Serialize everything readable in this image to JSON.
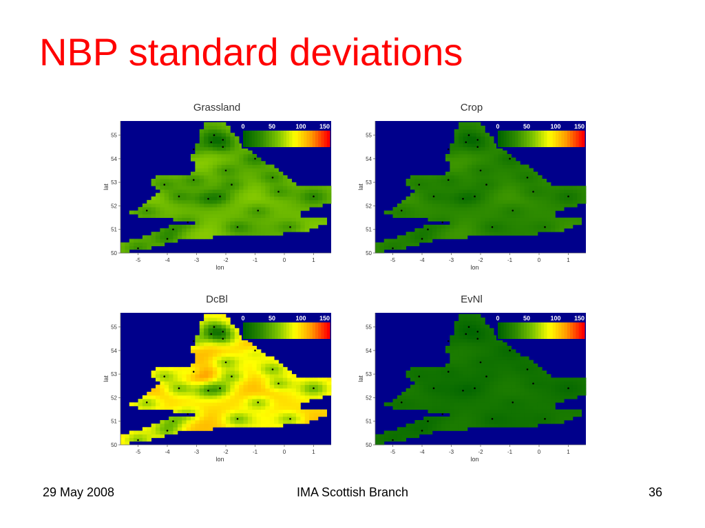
{
  "slide": {
    "title": "NBP standard deviations",
    "footer_left": "29 May 2008",
    "footer_center": "IMA Scottish Branch",
    "footer_right": "36"
  },
  "colors": {
    "title": "#ff0000",
    "ocean": "#00008b",
    "colormap": [
      "#006400",
      "#2e8b00",
      "#7cc400",
      "#ffff00",
      "#ff9900",
      "#ff0000"
    ]
  },
  "chart_data": [
    {
      "type": "heatmap",
      "title": "Grassland",
      "xlabel": "lon",
      "ylabel": "lat",
      "xlim": [
        -5.6,
        1.6
      ],
      "ylim": [
        50,
        55.6
      ],
      "xticks": [
        -5,
        -4,
        -3,
        -2,
        -1,
        0,
        1
      ],
      "yticks": [
        50,
        51,
        52,
        53,
        54,
        55
      ],
      "legend": {
        "placement": "top-right",
        "ticks": [
          0,
          50,
          100,
          150
        ],
        "range": [
          0,
          150
        ]
      },
      "base_value": 55,
      "variation": 8,
      "stations": [
        [
          -4.7,
          51.8
        ],
        [
          -4.1,
          52.9
        ],
        [
          -3.6,
          52.4
        ],
        [
          -3.1,
          53.1
        ],
        [
          -2.6,
          52.3
        ],
        [
          -2.2,
          52.4
        ],
        [
          -2.0,
          53.5
        ],
        [
          -1.6,
          51.1
        ],
        [
          -0.9,
          51.8
        ],
        [
          -0.4,
          53.2
        ],
        [
          -0.2,
          52.6
        ],
        [
          0.2,
          51.1
        ],
        [
          1.0,
          52.4
        ],
        [
          -2.5,
          54.7
        ],
        [
          -2.1,
          54.5
        ],
        [
          -3.1,
          54.4
        ],
        [
          -1.0,
          54.0
        ],
        [
          -3.8,
          51.0
        ],
        [
          -3.3,
          51.3
        ],
        [
          -4.0,
          50.6
        ],
        [
          -5.0,
          50.2
        ],
        [
          -2.4,
          55.0
        ],
        [
          -2.1,
          54.8
        ],
        [
          -1.8,
          52.9
        ]
      ],
      "hotspots": []
    },
    {
      "type": "heatmap",
      "title": "Crop",
      "xlabel": "lon",
      "ylabel": "lat",
      "xlim": [
        -5.6,
        1.6
      ],
      "ylim": [
        50,
        55.6
      ],
      "xticks": [
        -5,
        -4,
        -3,
        -2,
        -1,
        0,
        1
      ],
      "yticks": [
        50,
        51,
        52,
        53,
        54,
        55
      ],
      "legend": {
        "placement": "top-right",
        "ticks": [
          0,
          50,
          100,
          150
        ],
        "range": [
          0,
          150
        ]
      },
      "base_value": 30,
      "variation": 6,
      "stations": [
        [
          -4.7,
          51.8
        ],
        [
          -4.1,
          52.9
        ],
        [
          -3.6,
          52.4
        ],
        [
          -3.1,
          53.1
        ],
        [
          -2.6,
          52.3
        ],
        [
          -2.2,
          52.4
        ],
        [
          -2.0,
          53.5
        ],
        [
          -1.6,
          51.1
        ],
        [
          -0.9,
          51.8
        ],
        [
          -0.4,
          53.2
        ],
        [
          -0.2,
          52.6
        ],
        [
          0.2,
          51.1
        ],
        [
          1.0,
          52.4
        ],
        [
          -2.5,
          54.7
        ],
        [
          -2.1,
          54.5
        ],
        [
          -3.1,
          54.4
        ],
        [
          -1.0,
          54.0
        ],
        [
          -3.8,
          51.0
        ],
        [
          -3.3,
          51.3
        ],
        [
          -4.0,
          50.6
        ],
        [
          -5.0,
          50.2
        ],
        [
          -2.4,
          55.0
        ],
        [
          -2.1,
          54.8
        ],
        [
          -1.8,
          52.9
        ]
      ],
      "hotspots": []
    },
    {
      "type": "heatmap",
      "title": "DcBl",
      "xlabel": "lon",
      "ylabel": "lat",
      "xlim": [
        -5.6,
        1.6
      ],
      "ylim": [
        50,
        55.6
      ],
      "xticks": [
        -5,
        -4,
        -3,
        -2,
        -1,
        0,
        1
      ],
      "yticks": [
        50,
        51,
        52,
        53,
        54,
        55
      ],
      "legend": {
        "placement": "top-right",
        "ticks": [
          0,
          50,
          100,
          150
        ],
        "range": [
          0,
          150
        ]
      },
      "base_value": 100,
      "variation": 10,
      "stations": [
        [
          -4.7,
          51.8
        ],
        [
          -4.1,
          52.9
        ],
        [
          -3.6,
          52.4
        ],
        [
          -3.1,
          53.1
        ],
        [
          -2.6,
          52.3
        ],
        [
          -2.2,
          52.4
        ],
        [
          -2.0,
          53.5
        ],
        [
          -1.6,
          51.1
        ],
        [
          -0.9,
          51.8
        ],
        [
          -0.4,
          53.2
        ],
        [
          -0.2,
          52.6
        ],
        [
          0.2,
          51.1
        ],
        [
          1.0,
          52.4
        ],
        [
          -2.5,
          54.7
        ],
        [
          -2.1,
          54.5
        ],
        [
          -3.1,
          54.4
        ],
        [
          -1.0,
          54.0
        ],
        [
          -3.8,
          51.0
        ],
        [
          -3.3,
          51.3
        ],
        [
          -4.0,
          50.6
        ],
        [
          -5.0,
          50.2
        ],
        [
          -2.4,
          55.0
        ],
        [
          -2.1,
          54.8
        ],
        [
          -1.8,
          52.9
        ]
      ],
      "hotspots": [
        [
          -2.9,
          53.0,
          40
        ],
        [
          -1.0,
          54.1,
          35
        ]
      ]
    },
    {
      "type": "heatmap",
      "title": "EvNl",
      "xlabel": "lon",
      "ylabel": "lat",
      "xlim": [
        -5.6,
        1.6
      ],
      "ylim": [
        50,
        55.6
      ],
      "xticks": [
        -5,
        -4,
        -3,
        -2,
        -1,
        0,
        1
      ],
      "yticks": [
        50,
        51,
        52,
        53,
        54,
        55
      ],
      "legend": {
        "placement": "top-right",
        "ticks": [
          0,
          50,
          100,
          150
        ],
        "range": [
          0,
          150
        ]
      },
      "base_value": 14,
      "variation": 4,
      "stations": [
        [
          -4.7,
          51.8
        ],
        [
          -4.1,
          52.9
        ],
        [
          -3.6,
          52.4
        ],
        [
          -3.1,
          53.1
        ],
        [
          -2.6,
          52.3
        ],
        [
          -2.2,
          52.4
        ],
        [
          -2.0,
          53.5
        ],
        [
          -1.6,
          51.1
        ],
        [
          -0.9,
          51.8
        ],
        [
          -0.4,
          53.2
        ],
        [
          -0.2,
          52.6
        ],
        [
          0.2,
          51.1
        ],
        [
          1.0,
          52.4
        ],
        [
          -2.5,
          54.7
        ],
        [
          -2.1,
          54.5
        ],
        [
          -3.1,
          54.4
        ],
        [
          -1.0,
          54.0
        ],
        [
          -3.8,
          51.0
        ],
        [
          -3.3,
          51.3
        ],
        [
          -4.0,
          50.6
        ],
        [
          -5.0,
          50.2
        ],
        [
          -2.4,
          55.0
        ],
        [
          -2.1,
          54.8
        ],
        [
          -1.8,
          52.9
        ]
      ],
      "hotspots": []
    }
  ]
}
